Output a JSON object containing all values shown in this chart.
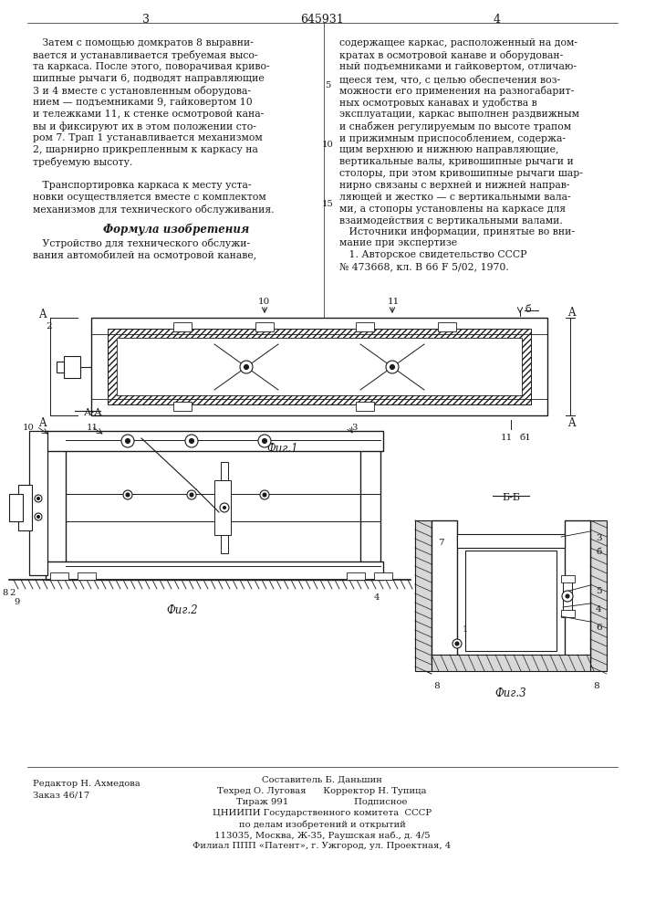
{
  "title_center": "645931",
  "page_left": "3",
  "page_right": "4",
  "background_color": "#ffffff",
  "text_color": "#1a1a1a",
  "col_left_text": [
    "   Затем с помощью домкратов 8 выравни-",
    "вается и устанавливается требуемая высо-",
    "та каркаса. После этого, поворачивая криво-",
    "шипные рычаги 6, подводят направляющие",
    "3 и 4 вместе с установленным оборудова-",
    "нием — подъемниками 9, гайковертом 10",
    "и тележками 11, к стенке осмотровой кана-",
    "вы и фиксируют их в этом положении сто-",
    "ром 7. Трап 1 устанавливается механизмом",
    "2, шарнирно прикрепленным к каркасу на",
    "требуемую высоту.",
    "",
    "   Транспортировка каркаса к месту уста-",
    "новки осуществляется вместе с комплектом",
    "механизмов для технического обслуживания."
  ],
  "col_left_formula_title": "Формула изобретения",
  "col_left_formula_lines": [
    "   Устройство для технического обслужи-",
    "вания автомобилей на осмотровой канаве,"
  ],
  "col_right_text": [
    "содержащее каркас, расположенный на дом-",
    "кратах в осмотровой канаве и оборудован-",
    "ный подъемниками и гайковертом, отличаю-",
    "щееся тем, что, с целью обеспечения воз-",
    "можности его применения на разногабарит-",
    "ных осмотровых канавах и удобства в",
    "эксплуатации, каркас выполнен раздвижным",
    "и снабжен регулируемым по высоте трапом",
    "и прижимным приспособлением, содержа-",
    "щим верхнюю и нижнюю направляющие,",
    "вертикальные валы, кривошипные рычаги и",
    "столоры, при этом кривошипные рычаги шар-",
    "нирно связаны с верхней и нижней направ-",
    "ляющей и жестко — с вертикальными вала-",
    "ми, а стопоры установлены на каркасе для",
    "взаимодействия с вертикальными валами."
  ],
  "col_right_source": [
    "   Источники информации, принятые во вни-",
    "мание при экспертизе",
    "   1. Авторское свидетельство СССР",
    "№ 473668, кл. В 66 F 5/02, 1970."
  ],
  "fig1_caption": "Фиг.1",
  "fig2_caption": "Фиг.2",
  "fig3_caption": "Фиг.3",
  "aa_label": "А-А",
  "bb_label": "Б-Б",
  "footer_left_lines": [
    "Редактор Н. Ахмедова",
    "Заказ 46/17"
  ],
  "footer_center_lines": [
    "Составитель Б. Даньшин",
    "Техред О. Луговая      Корректор Н. Тупица",
    "Тираж 991                       Подписное",
    "ЦНИИПИ Государственного комитета  СССР",
    "по делам изобретений и открытий",
    "113035, Москва, Ж-35, Раушская наб., д. 4/5",
    "Филиал ППП «Патент», г. Ужгород, ул. Проектная, 4"
  ]
}
